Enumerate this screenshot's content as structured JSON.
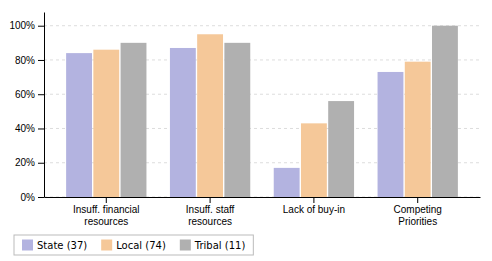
{
  "chart_data": {
    "type": "bar",
    "categories": [
      "Insuff. financial\nresources",
      "Insuff. staff\nresources",
      "Lack of buy-in",
      "Competing\nPriorities"
    ],
    "series": [
      {
        "name": "State (37)",
        "color": "#b3b3e0",
        "values": [
          84,
          87,
          17,
          73
        ]
      },
      {
        "name": "Local (74)",
        "color": "#f5c899",
        "values": [
          86,
          95,
          43,
          79
        ]
      },
      {
        "name": "Tribal (11)",
        "color": "#b0b0b0",
        "values": [
          90,
          90,
          56,
          100
        ]
      }
    ],
    "ylim": [
      0,
      108
    ],
    "yticks": [
      {
        "value": 0,
        "label": "0%"
      },
      {
        "value": 20,
        "label": "20%"
      },
      {
        "value": 40,
        "label": "40%"
      },
      {
        "value": 60,
        "label": "60%"
      },
      {
        "value": 80,
        "label": "80%"
      },
      {
        "value": 100,
        "label": "100%"
      }
    ],
    "grid": true,
    "legend": "bottom"
  }
}
